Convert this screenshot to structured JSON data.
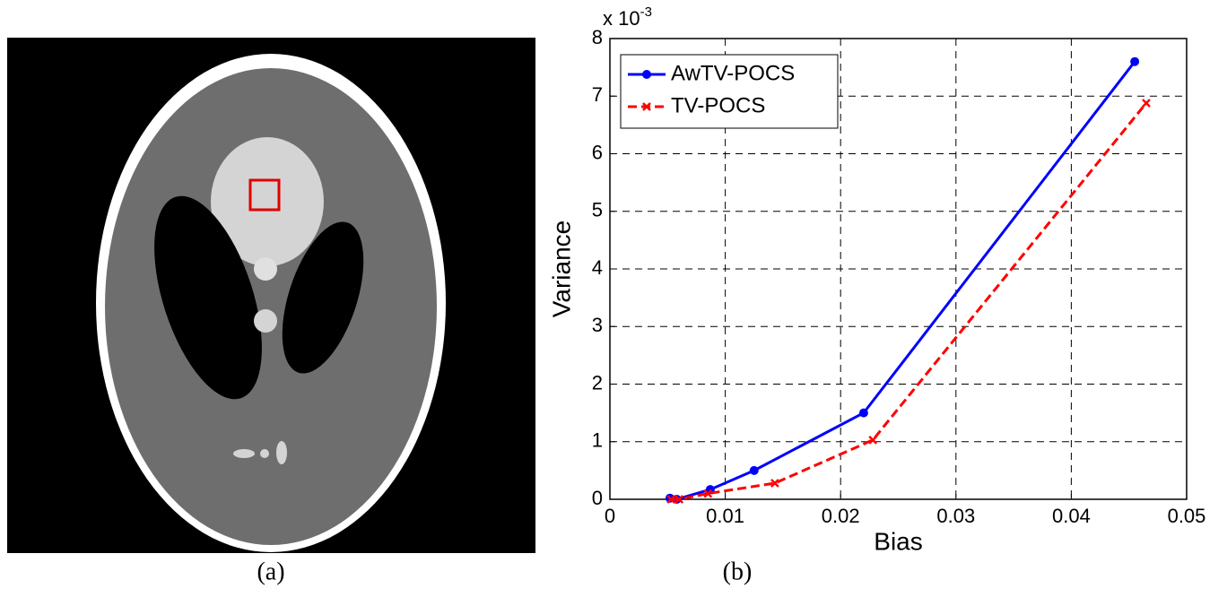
{
  "panel_a": {
    "caption": "(a)"
  },
  "chart_data": {
    "type": "line",
    "caption": "(b)",
    "xlabel": "Bias",
    "ylabel": "Variance",
    "y_multiplier": {
      "base": "x 10",
      "exponent": "-3"
    },
    "xlim": [
      0,
      0.05
    ],
    "xticks": [
      0,
      0.01,
      0.02,
      0.03,
      0.04,
      0.05
    ],
    "ylim": [
      0,
      8
    ],
    "yticks": [
      0,
      1,
      2,
      3,
      4,
      5,
      6,
      7,
      8
    ],
    "grid": true,
    "legend": "upper left",
    "series": [
      {
        "name": "AwTV-POCS",
        "color": "#0000ff",
        "dash": "solid",
        "marker": "circle",
        "x": [
          0.0052,
          0.0058,
          0.0087,
          0.0125,
          0.022,
          0.0455
        ],
        "values": [
          0.02,
          0.0,
          0.17,
          0.5,
          1.5,
          7.6
        ]
      },
      {
        "name": "TV-POCS",
        "color": "#ff0000",
        "dash": "dashed",
        "marker": "x",
        "x": [
          0.0053,
          0.006,
          0.0085,
          0.0143,
          0.0228,
          0.0465
        ],
        "values": [
          0.0,
          0.0,
          0.1,
          0.28,
          1.03,
          6.88
        ]
      }
    ]
  }
}
